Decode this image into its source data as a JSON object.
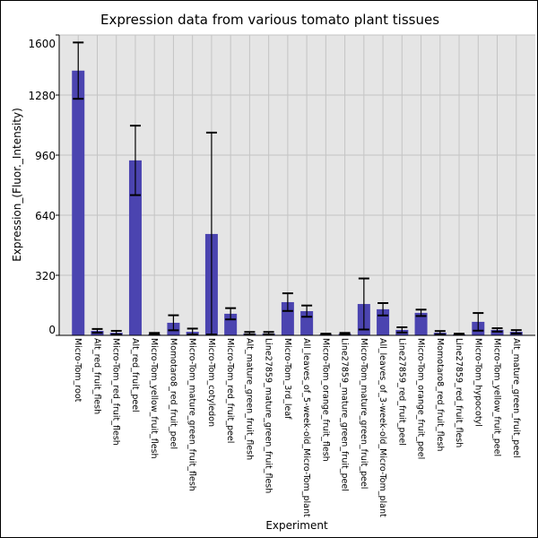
{
  "chart_data": {
    "type": "bar",
    "title": "Expression data from various tomato plant tissues",
    "xlabel": "Experiment",
    "ylabel": "Expression_(Fluor._Intensity)",
    "ylim": [
      0,
      1600
    ],
    "yticks": [
      0,
      320,
      640,
      960,
      1280,
      1600
    ],
    "grid": true,
    "bar_color": "#4b44b0",
    "categories": [
      "Micro-Tom_root",
      "Alt_red_fruit_flesh",
      "Micro-Tom_red_fruit_flesh",
      "Alt_red_fruit_peel",
      "Micro-Tom_yellow_fruit_flesh",
      "Momotaro8_red_fruit_peel",
      "Micro-Tom_mature_green_fruit_flesh",
      "Micro-Tom_cotyledon",
      "Micro-Tom_red_fruit_peel",
      "Alt_mature_green_fruit_flesh",
      "Line27859_mature_green_fruit_flesh",
      "Micro-Tom_3rd_leaf",
      "All_leaves_of_5-week-old_Micro-Tom_plant",
      "Micro-Tom_orange_fruit_flesh",
      "Line27859_mature_green_fruit_peel",
      "Micro-Tom_mature_green_fruit_peel",
      "All_leaves_of_3-week-old_Micro-Tom_plant",
      "Line27859_red_fruit_peel",
      "Micro-Tom_orange_fruit_peel",
      "Momotaro8_red_fruit_flesh",
      "Line27859_red_fruit_flesh",
      "Micro-Tom_hypocotyl",
      "Micro-Tom_yellow_fruit_peel",
      "Alt_mature_green_fruit_peel"
    ],
    "values": [
      1410,
      24,
      14,
      932,
      5,
      67,
      19,
      540,
      115,
      10,
      10,
      177,
      129,
      5,
      8,
      167,
      139,
      29,
      120,
      14,
      5,
      72,
      29,
      19
    ],
    "errors": [
      150,
      10,
      10,
      185,
      8,
      40,
      17,
      540,
      30,
      8,
      8,
      47,
      30,
      4,
      5,
      136,
      33,
      14,
      17,
      9,
      4,
      47,
      9,
      9
    ]
  }
}
